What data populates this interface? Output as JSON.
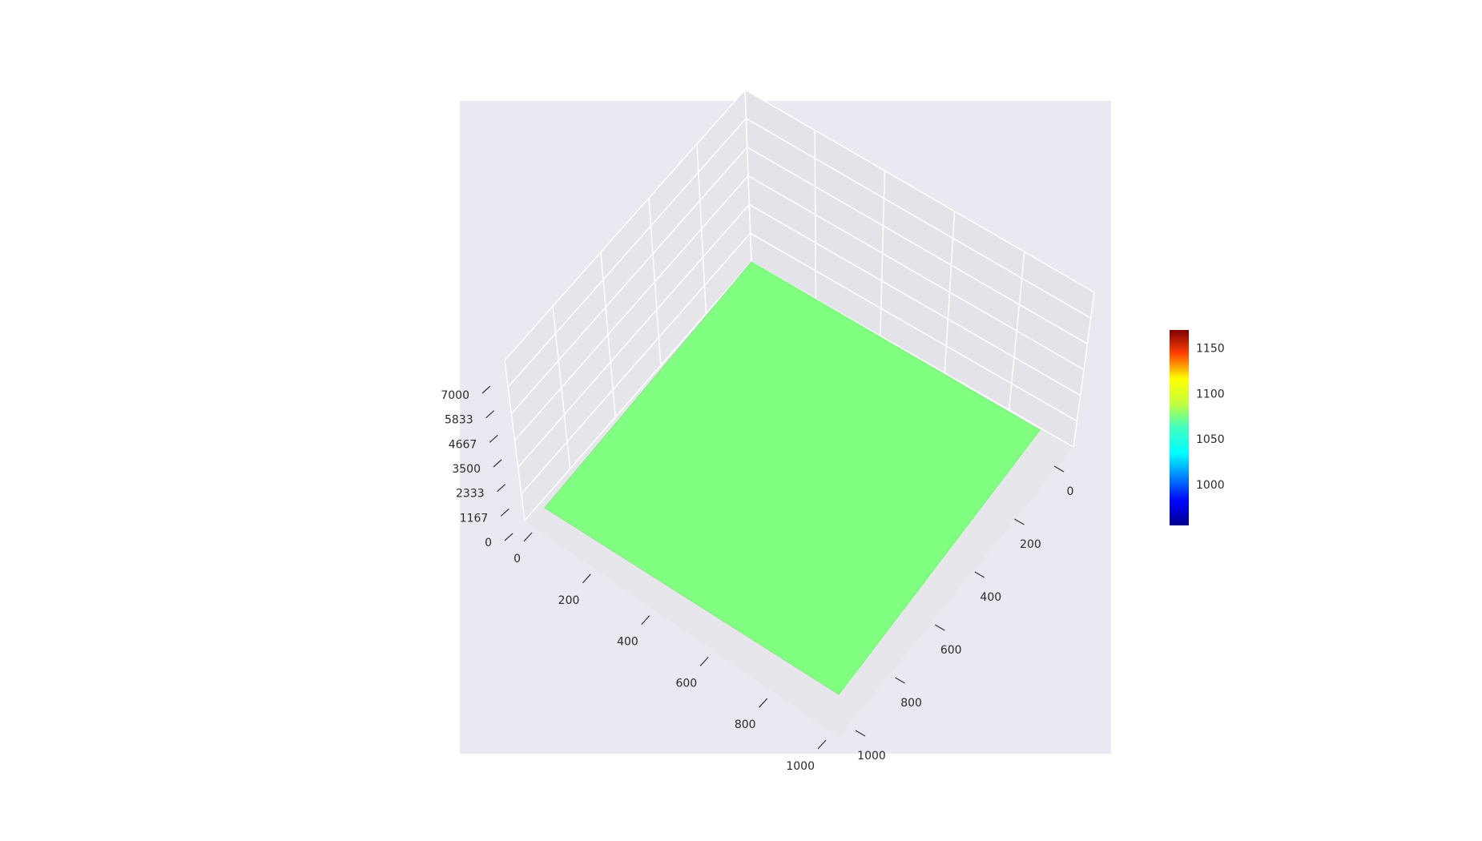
{
  "chart_data": {
    "type": "surface",
    "title": "",
    "surface": {
      "x_range": [
        0,
        1000
      ],
      "y_range": [
        0,
        1000
      ],
      "z_value": 1063,
      "color": "#80ff80",
      "description_of_values": "flat surface, constant z"
    },
    "axes": {
      "x": {
        "label": "",
        "ticks": [
          "0",
          "200",
          "400",
          "600",
          "800",
          "1000"
        ],
        "range": [
          0,
          1000
        ]
      },
      "y": {
        "label": "",
        "ticks": [
          "0",
          "200",
          "400",
          "600",
          "800",
          "1000"
        ],
        "range": [
          0,
          1000
        ]
      },
      "z": {
        "label": "",
        "ticks": [
          "0",
          "1167",
          "2333",
          "3500",
          "4667",
          "5833",
          "7000"
        ],
        "range": [
          0,
          7000
        ]
      }
    },
    "colorbar": {
      "colorscale": "jet",
      "range": [
        955,
        1170
      ],
      "ticks": [
        "1000",
        "1050",
        "1100",
        "1150"
      ],
      "tick_values": [
        1000,
        1050,
        1100,
        1150
      ]
    },
    "grid": true,
    "background_color": "#e8e8f0"
  }
}
